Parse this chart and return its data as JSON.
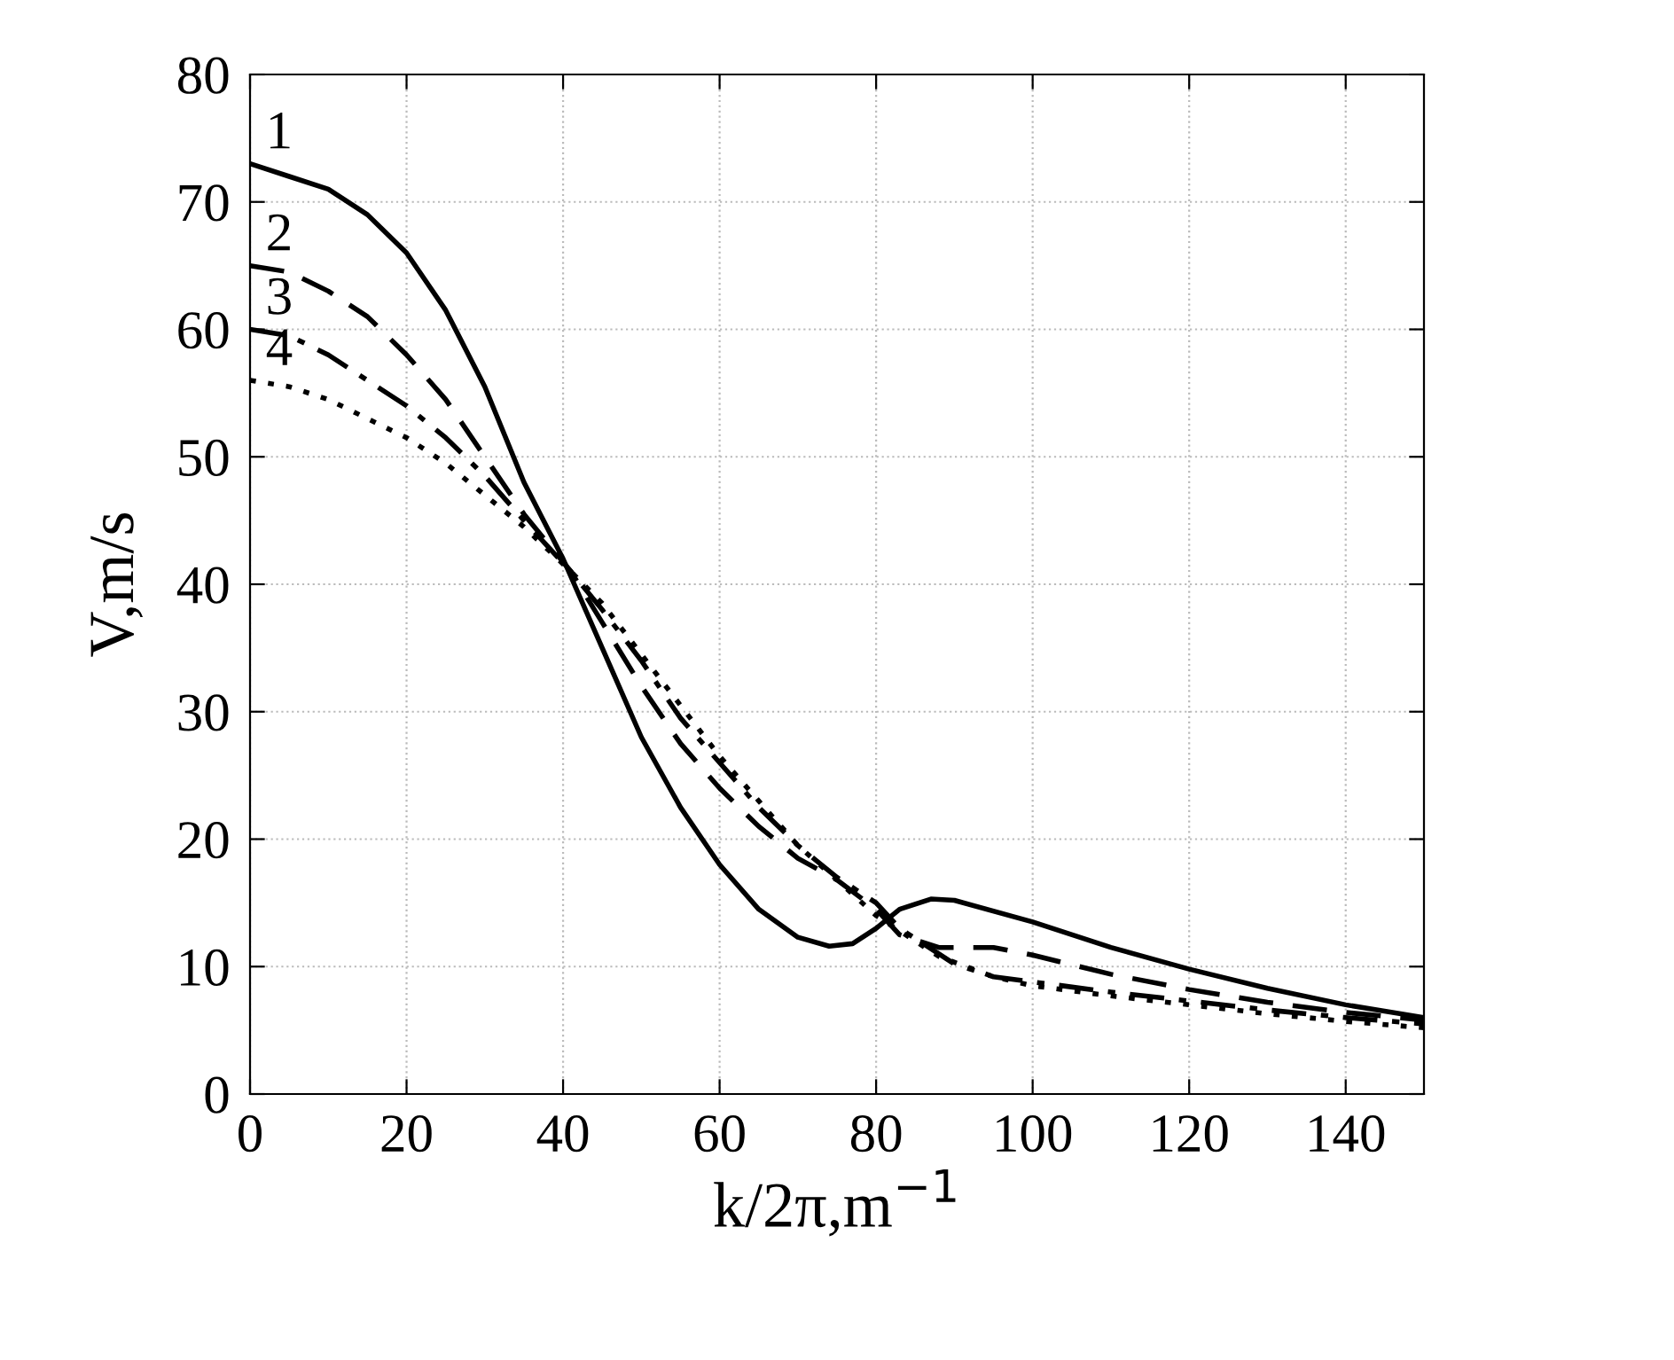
{
  "chart_data": {
    "type": "line",
    "xlabel": "k/2π,m$^{−1}$",
    "ylabel": "V,m/s",
    "xlim": [
      0,
      150
    ],
    "ylim": [
      0,
      80
    ],
    "xticks": [
      0,
      20,
      40,
      60,
      80,
      100,
      120,
      140
    ],
    "yticks": [
      0,
      10,
      20,
      30,
      40,
      50,
      60,
      70,
      80
    ],
    "grid": true,
    "legend": false,
    "marker": "none",
    "series": [
      {
        "name": "1",
        "color": "#000000",
        "line_style": "solid",
        "x": [
          0,
          5,
          10,
          15,
          20,
          25,
          30,
          35,
          40,
          45,
          50,
          55,
          60,
          65,
          70,
          74,
          77,
          80,
          83,
          87,
          90,
          100,
          110,
          120,
          130,
          140,
          150
        ],
        "values": [
          73,
          72,
          71,
          69,
          66,
          61.5,
          55.5,
          48,
          42,
          35,
          28,
          22.5,
          18,
          14.5,
          12.3,
          11.6,
          11.8,
          13,
          14.5,
          15.3,
          15.2,
          13.5,
          11.5,
          9.8,
          8.3,
          7,
          6
        ]
      },
      {
        "name": "2",
        "color": "#000000",
        "line_style": "dashed",
        "x": [
          0,
          5,
          10,
          15,
          20,
          25,
          30,
          35,
          41,
          45,
          50,
          55,
          60,
          65,
          70,
          75,
          80,
          83,
          88,
          95,
          100,
          110,
          120,
          130,
          140,
          150
        ],
        "values": [
          65,
          64.5,
          63,
          61,
          58,
          54.5,
          50,
          45.5,
          41,
          37,
          32,
          27.5,
          24,
          21,
          18.5,
          16.8,
          14.5,
          12.5,
          11.5,
          11.5,
          10.9,
          9.4,
          8.2,
          7.2,
          6.4,
          5.8
        ]
      },
      {
        "name": "3",
        "color": "#000000",
        "line_style": "dashdot",
        "x": [
          0,
          5,
          10,
          15,
          20,
          25,
          30,
          35,
          41,
          45,
          50,
          55,
          60,
          65,
          70,
          75,
          80,
          83,
          90,
          95,
          100,
          110,
          120,
          130,
          140,
          150
        ],
        "values": [
          60,
          59.5,
          58,
          56,
          54,
          51.5,
          48.5,
          45,
          41,
          38,
          34,
          29.5,
          26,
          22.5,
          19.5,
          17,
          15,
          13,
          10.2,
          9.2,
          8.8,
          8,
          7.3,
          6.6,
          6,
          5.5
        ]
      },
      {
        "name": "4",
        "color": "#000000",
        "line_style": "dotted",
        "x": [
          0,
          5,
          10,
          15,
          20,
          25,
          30,
          35,
          41,
          45,
          50,
          55,
          60,
          65,
          70,
          75,
          80,
          83,
          88,
          95,
          100,
          110,
          120,
          130,
          140,
          150
        ],
        "values": [
          56,
          55.5,
          54.5,
          53,
          51.5,
          49.5,
          47,
          44.5,
          41,
          38.5,
          34.5,
          30.5,
          26.5,
          23,
          19.5,
          16.8,
          14,
          12.8,
          10.8,
          9.2,
          8.5,
          7.7,
          7,
          6.3,
          5.7,
          5.2
        ]
      }
    ]
  }
}
